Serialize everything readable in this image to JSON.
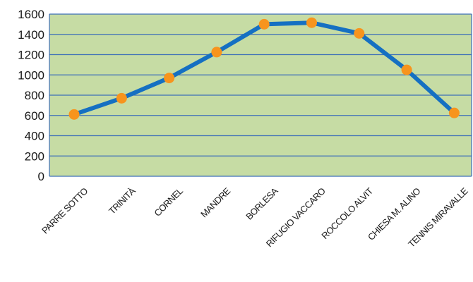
{
  "chart_data": {
    "type": "line",
    "title": "",
    "xlabel": "",
    "ylabel": "",
    "categories": [
      "PARRE SOTTO",
      "TRINITÀ",
      "CORNEL",
      "MANDRE",
      "BORLESA",
      "RIFUGIO VACCARO",
      "ROCCOLO ALVIT",
      "CHIESA M. ALINO",
      "TENNIS MIRAVALLE"
    ],
    "series": [
      {
        "values": [
          610,
          770,
          970,
          1225,
          1500,
          1515,
          1410,
          1050,
          625
        ]
      }
    ],
    "ylim": [
      0,
      1600
    ],
    "yticks": [
      0,
      200,
      400,
      600,
      800,
      1000,
      1200,
      1400,
      1600
    ],
    "grid": true,
    "legend": "none",
    "colors": {
      "plot_background": "#c6dca4",
      "gridline": "#3c6fb8",
      "line": "#1570c2",
      "marker": "#f7941d",
      "axis": "#3c6fb8"
    }
  }
}
